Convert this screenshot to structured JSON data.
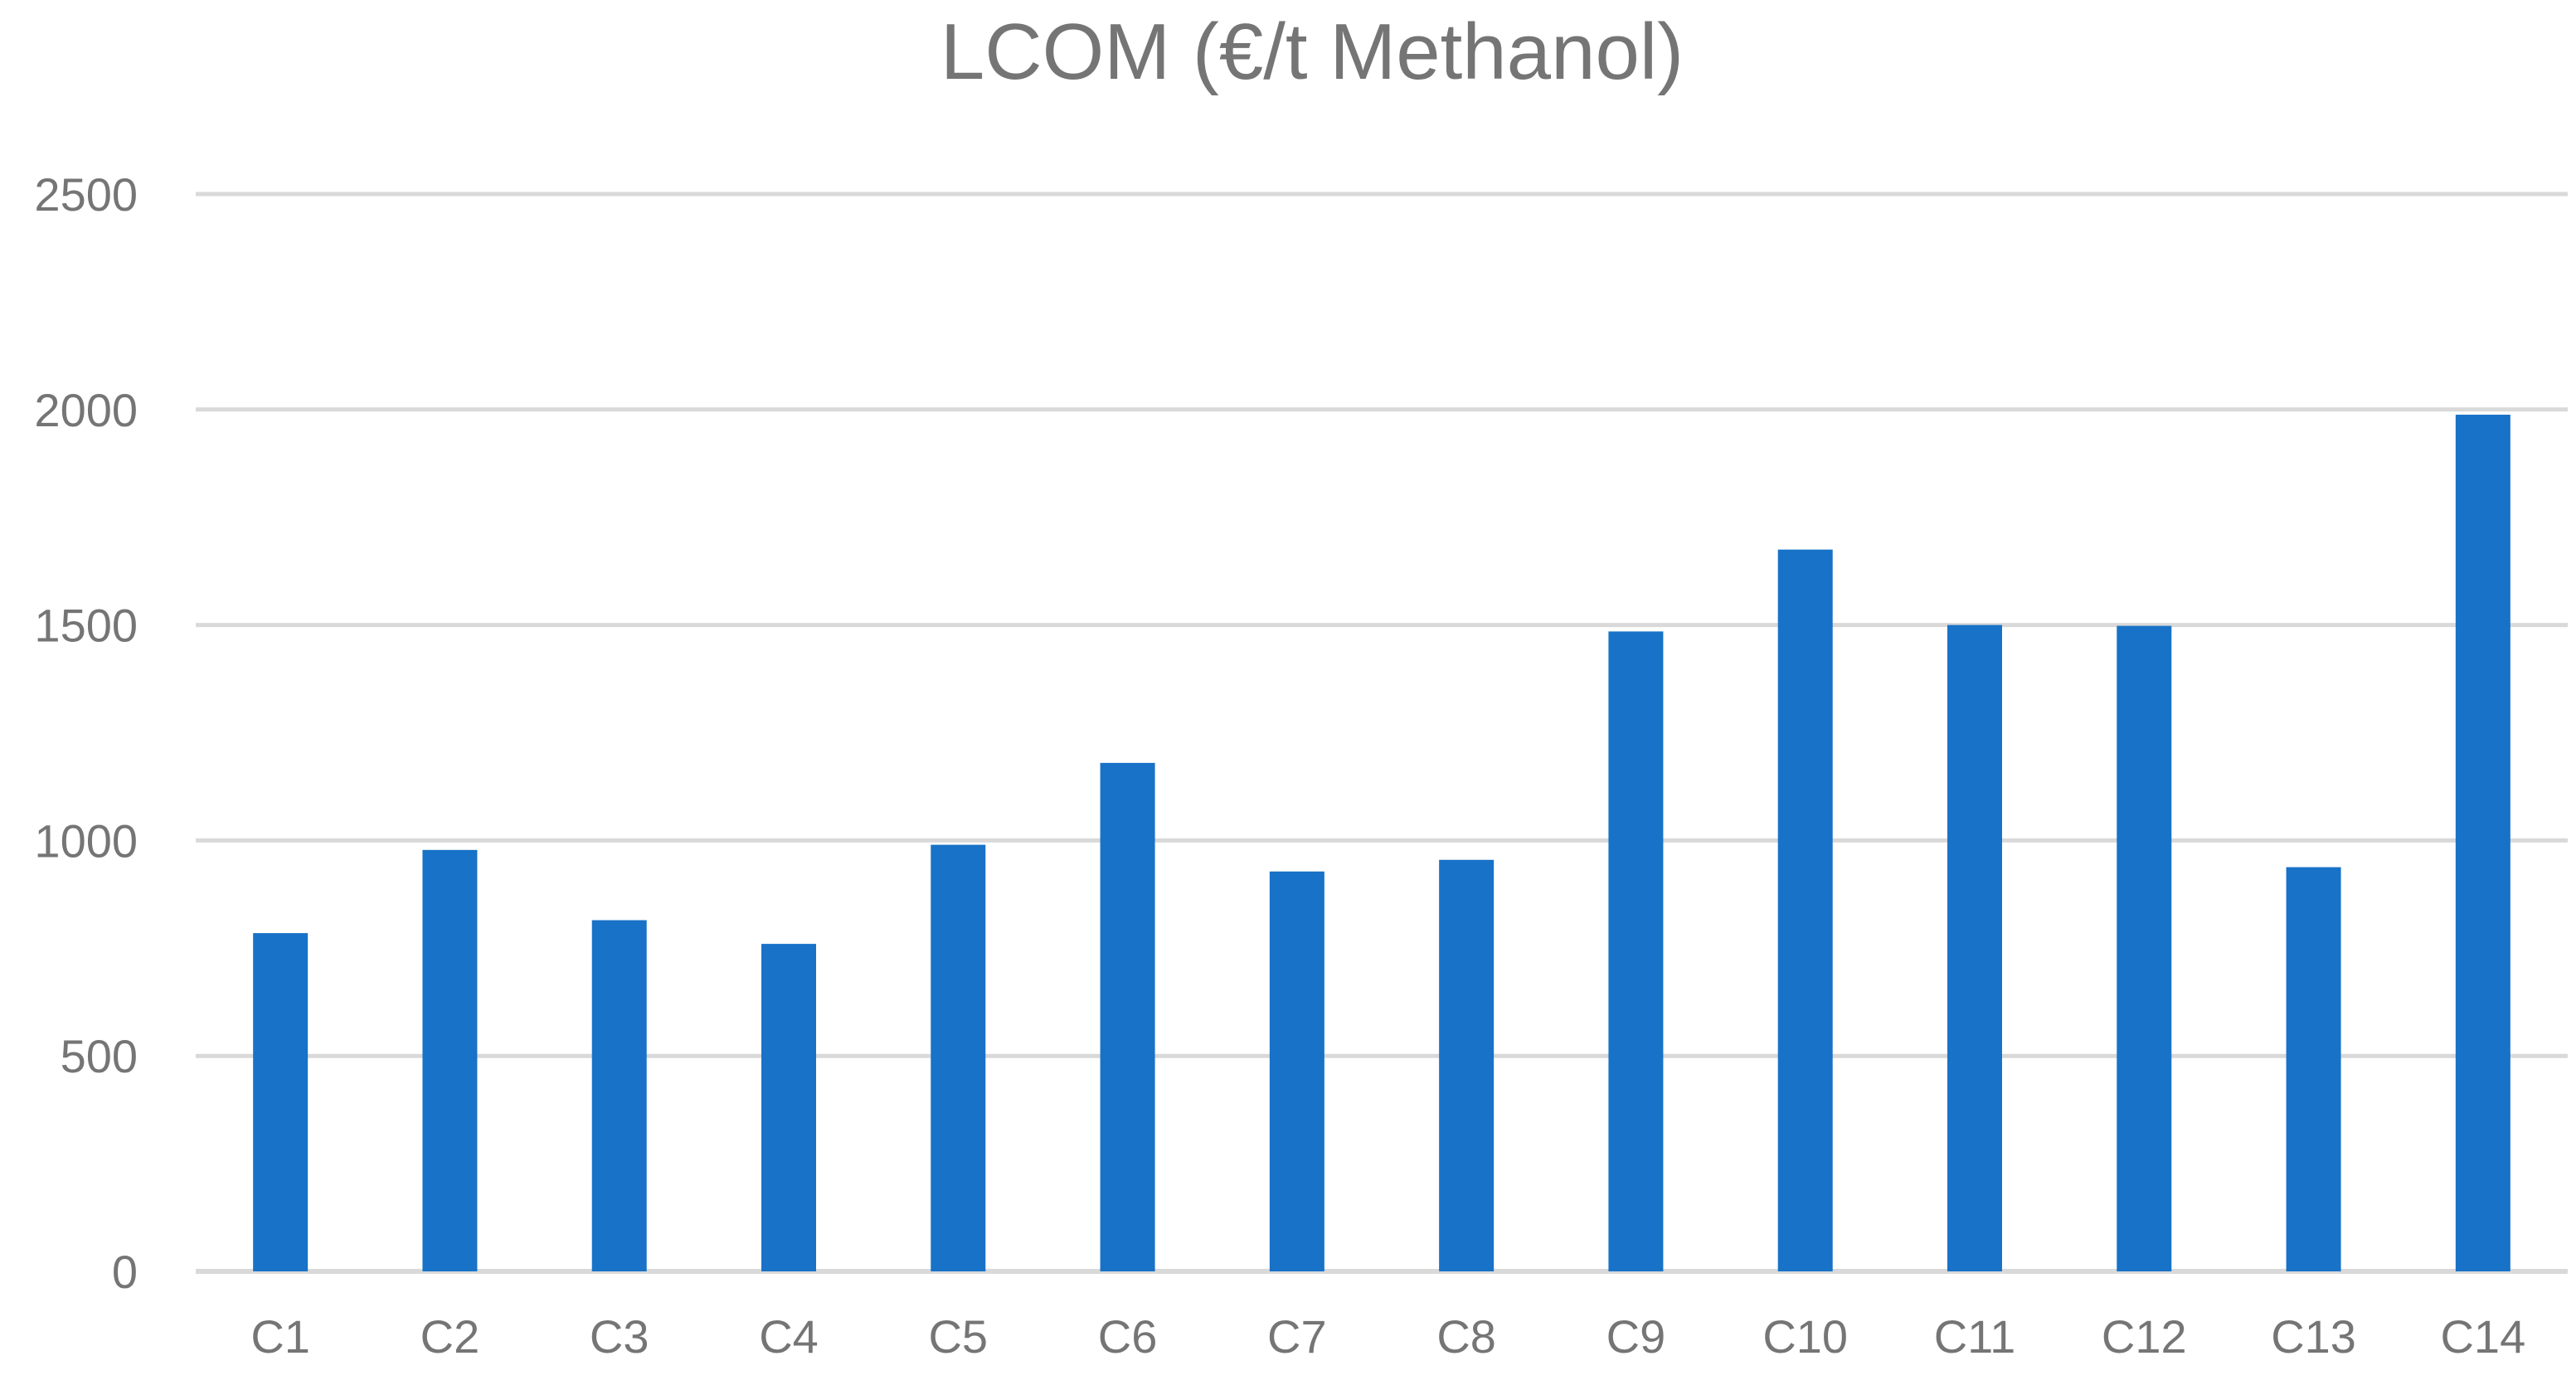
{
  "chart_data": {
    "type": "bar",
    "title": "LCOM (€/t Methanol)",
    "categories": [
      "C1",
      "C2",
      "C3",
      "C4",
      "C5",
      "C6",
      "C7",
      "C8",
      "C9",
      "C10",
      "C11",
      "C12",
      "C13",
      "C14"
    ],
    "series": [
      {
        "values": [
          785,
          978,
          815,
          760,
          990,
          1180,
          928,
          955,
          1485,
          1675,
          1500,
          1498,
          938,
          1988
        ],
        "color": "#1872C7"
      }
    ],
    "xlabel": "",
    "ylabel": "",
    "ylim": [
      0,
      2500
    ],
    "yticks": [
      0,
      500,
      1000,
      1500,
      2000,
      2500
    ],
    "grid": true,
    "legend": "none"
  }
}
